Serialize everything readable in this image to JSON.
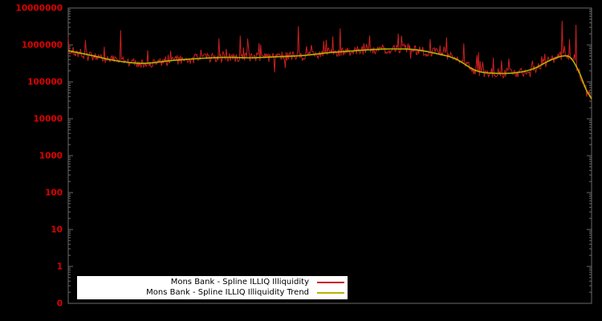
{
  "chart_data": {
    "type": "line",
    "title": "",
    "background": "#000000",
    "axis": {
      "text_color": "#dd0000",
      "border_color": "#6a6a6a",
      "y_scale": "log",
      "y_tick_labels": [
        "0",
        "1",
        "10",
        "100",
        "1000",
        "10000",
        "100000",
        "1000000",
        "10000000"
      ],
      "y_range_log10": [
        -1,
        7
      ],
      "x_range": [
        0,
        1
      ],
      "x_tick_labels": [],
      "grid": "off"
    },
    "legend": {
      "position": "bottom-left",
      "background": "#ffffff",
      "text_color": "#000000"
    },
    "series": [
      {
        "name": "Mons Bank - Spline ILLIQ Illiquidity",
        "color": "#cc1f1f",
        "style": "raw-noisy",
        "width": 1
      },
      {
        "name": "Mons Bank - Spline ILLIQ Illiquidity Trend",
        "color": "#b5b400",
        "style": "smooth-trend",
        "width": 1.6
      }
    ],
    "trend_points": [
      [
        0.0,
        700000
      ],
      [
        0.05,
        500000
      ],
      [
        0.08,
        400000
      ],
      [
        0.12,
        330000
      ],
      [
        0.15,
        320000
      ],
      [
        0.2,
        380000
      ],
      [
        0.25,
        430000
      ],
      [
        0.3,
        460000
      ],
      [
        0.35,
        450000
      ],
      [
        0.4,
        480000
      ],
      [
        0.45,
        520000
      ],
      [
        0.5,
        620000
      ],
      [
        0.55,
        700000
      ],
      [
        0.58,
        750000
      ],
      [
        0.62,
        780000
      ],
      [
        0.66,
        750000
      ],
      [
        0.7,
        600000
      ],
      [
        0.74,
        420000
      ],
      [
        0.78,
        200000
      ],
      [
        0.82,
        170000
      ],
      [
        0.86,
        180000
      ],
      [
        0.89,
        230000
      ],
      [
        0.92,
        380000
      ],
      [
        0.945,
        500000
      ],
      [
        0.96,
        450000
      ],
      [
        0.975,
        200000
      ],
      [
        0.99,
        60000
      ],
      [
        1.0,
        35000
      ]
    ],
    "noise": {
      "seed": 7,
      "points": 640,
      "jitter": 0.26,
      "spike_prob": 0.12,
      "spike_extra": 0.5,
      "dip_prob": 0.04,
      "dip_extra": 0.35
    },
    "explicit_spikes": [
      {
        "x": 0.1,
        "v": 2500000
      },
      {
        "x": 0.44,
        "v": 3200000
      },
      {
        "x": 0.52,
        "v": 2800000
      },
      {
        "x": 0.943,
        "v": 4500000
      },
      {
        "x": 0.971,
        "v": 3500000
      }
    ]
  }
}
